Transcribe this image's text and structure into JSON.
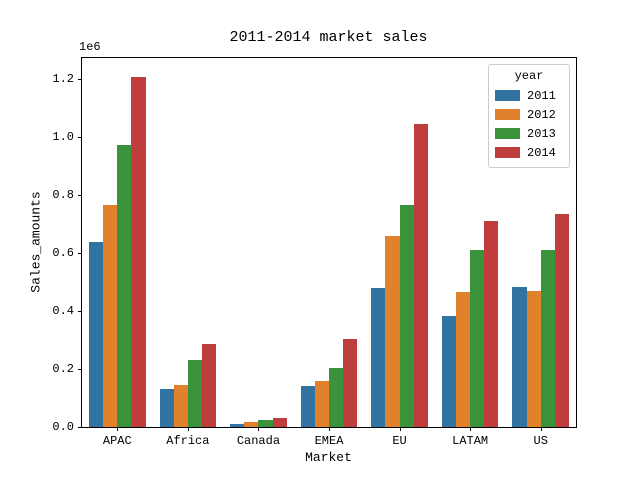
{
  "chart_data": {
    "type": "bar",
    "title": "2011-2014 market sales",
    "xlabel": "Market",
    "ylabel": "Sales_amounts",
    "offset_text": "1e6",
    "categories": [
      "APAC",
      "Africa",
      "Canada",
      "EMEA",
      "EU",
      "LATAM",
      "US"
    ],
    "series": [
      {
        "name": "2011",
        "color": "#3274a1",
        "values": [
          640000,
          130000,
          10000,
          140000,
          480000,
          385000,
          485000
        ]
      },
      {
        "name": "2012",
        "color": "#e1812c",
        "values": [
          765000,
          145000,
          17000,
          160000,
          660000,
          465000,
          470000
        ]
      },
      {
        "name": "2013",
        "color": "#3a923a",
        "values": [
          975000,
          230000,
          24000,
          205000,
          765000,
          610000,
          610000
        ]
      },
      {
        "name": "2014",
        "color": "#c03d3e",
        "values": [
          1210000,
          285000,
          31000,
          305000,
          1045000,
          710000,
          735000
        ]
      }
    ],
    "ylim": [
      0,
      1274000
    ],
    "yticks": [
      0,
      200000,
      400000,
      600000,
      800000,
      1000000,
      1200000
    ],
    "ytick_labels": [
      "0.0",
      "0.2",
      "0.4",
      "0.6",
      "0.8",
      "1.0",
      "1.2"
    ],
    "legend": {
      "title": "year",
      "position": "upper right"
    },
    "grid": false,
    "bar_group_fraction": 0.8
  }
}
